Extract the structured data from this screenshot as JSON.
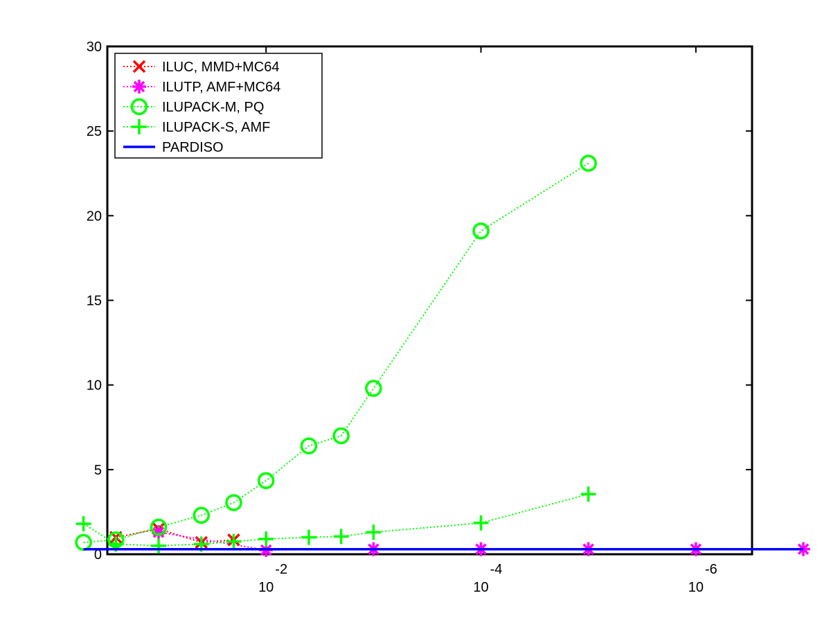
{
  "chart_data": {
    "type": "line",
    "title": "",
    "xlabel": "",
    "ylabel": "",
    "x_scale": "log-reversed",
    "xlim": [
      0.3,
      3e-07
    ],
    "ylim": [
      0,
      30
    ],
    "grid": false,
    "legend_position": "top-left",
    "y_ticks": [
      0,
      5,
      10,
      15,
      20,
      25,
      30
    ],
    "y_tick_labels": [
      "0",
      "5",
      "10",
      "15",
      "20",
      "25",
      "30"
    ],
    "x_ticks": [
      0.01,
      0.0001,
      1e-06
    ],
    "x_tick_bases": [
      "10",
      "10",
      "10"
    ],
    "x_tick_exponents": [
      "-2",
      "-4",
      "-6"
    ],
    "series": [
      {
        "name": "ILUC, MMD+MC64",
        "color": "#ff0000",
        "marker": "x",
        "line": "dotted",
        "x": [
          0.25,
          0.1,
          0.04,
          0.02
        ],
        "y": [
          1.0,
          1.5,
          0.7,
          0.85
        ]
      },
      {
        "name": "ILUTP, AMF+MC64",
        "color": "#ff00ff",
        "marker": "star",
        "line": "dotted",
        "x": [
          0.1,
          0.01,
          0.001,
          0.0001,
          1e-05,
          1e-06,
          1e-07
        ],
        "y": [
          1.3,
          0.25,
          0.3,
          0.3,
          0.3,
          0.3,
          0.3
        ]
      },
      {
        "name": "ILUPACK-M, PQ",
        "color": "#00ff00",
        "marker": "circle",
        "line": "dotted",
        "x": [
          0.5,
          0.25,
          0.1,
          0.04,
          0.02,
          0.01,
          0.004,
          0.002,
          0.001,
          0.0001,
          1e-05
        ],
        "y": [
          0.7,
          0.85,
          1.6,
          2.3,
          3.05,
          4.35,
          6.4,
          7.0,
          9.8,
          19.1,
          23.1
        ]
      },
      {
        "name": "ILUPACK-S, AMF",
        "color": "#00ff00",
        "marker": "plus",
        "line": "dotted",
        "x": [
          0.5,
          0.25,
          0.1,
          0.04,
          0.02,
          0.01,
          0.004,
          0.002,
          0.001,
          0.0001,
          1e-05
        ],
        "y": [
          1.8,
          0.6,
          0.5,
          0.6,
          0.75,
          0.9,
          1.0,
          1.05,
          1.3,
          1.85,
          3.55
        ]
      },
      {
        "name": "PARDISO",
        "color": "#0000ff",
        "marker": "none",
        "line": "solid",
        "x": [
          0.5,
          1e-07
        ],
        "y": [
          0.3,
          0.3
        ]
      }
    ]
  }
}
